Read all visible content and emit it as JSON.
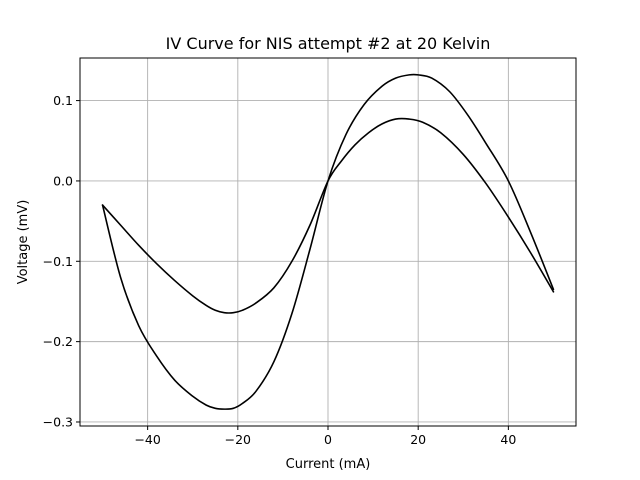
{
  "chart_data": {
    "type": "line",
    "title": "IV Curve for NIS attempt #2 at 20 Kelvin",
    "xlabel": "Current (mA)",
    "ylabel": "Voltage (mV)",
    "xlim": [
      -55,
      55
    ],
    "ylim": [
      -0.305,
      0.153
    ],
    "xticks": [
      -40,
      -20,
      0,
      20,
      40
    ],
    "xtick_labels": [
      "−40",
      "−20",
      "0",
      "20",
      "40"
    ],
    "yticks": [
      -0.3,
      -0.2,
      -0.1,
      0.0,
      0.1
    ],
    "ytick_labels": [
      "−0.3",
      "−0.2",
      "−0.1",
      "0.0",
      "0.1"
    ],
    "grid": true,
    "legend": "none",
    "line_color": "#000000",
    "series": [
      {
        "values": [
          [
            -50,
            -0.03
          ],
          [
            -46,
            -0.055
          ],
          [
            -42,
            -0.08
          ],
          [
            -38,
            -0.103
          ],
          [
            -34,
            -0.124
          ],
          [
            -30,
            -0.143
          ],
          [
            -27,
            -0.155
          ],
          [
            -25,
            -0.161
          ],
          [
            -23,
            -0.164
          ],
          [
            -21,
            -0.164
          ],
          [
            -19,
            -0.161
          ],
          [
            -16,
            -0.152
          ],
          [
            -12,
            -0.133
          ],
          [
            -8,
            -0.1
          ],
          [
            -4,
            -0.055
          ],
          [
            0,
            0.0
          ],
          [
            3,
            0.025
          ],
          [
            6,
            0.045
          ],
          [
            9,
            0.06
          ],
          [
            12,
            0.071
          ],
          [
            15,
            0.077
          ],
          [
            18,
            0.077
          ],
          [
            21,
            0.073
          ],
          [
            25,
            0.06
          ],
          [
            30,
            0.033
          ],
          [
            35,
            -0.003
          ],
          [
            40,
            -0.045
          ],
          [
            45,
            -0.09
          ],
          [
            50,
            -0.138
          ]
        ]
      },
      {
        "values": [
          [
            -50,
            -0.03
          ],
          [
            -46,
            -0.12
          ],
          [
            -42,
            -0.18
          ],
          [
            -38,
            -0.218
          ],
          [
            -34,
            -0.248
          ],
          [
            -30,
            -0.268
          ],
          [
            -27,
            -0.279
          ],
          [
            -25,
            -0.283
          ],
          [
            -23,
            -0.284
          ],
          [
            -21,
            -0.283
          ],
          [
            -19,
            -0.277
          ],
          [
            -16,
            -0.262
          ],
          [
            -12,
            -0.225
          ],
          [
            -8,
            -0.165
          ],
          [
            -4,
            -0.085
          ],
          [
            0,
            0.0
          ],
          [
            4,
            0.058
          ],
          [
            8,
            0.095
          ],
          [
            12,
            0.118
          ],
          [
            15,
            0.128
          ],
          [
            18,
            0.132
          ],
          [
            20,
            0.132
          ],
          [
            23,
            0.128
          ],
          [
            27,
            0.111
          ],
          [
            31,
            0.082
          ],
          [
            35,
            0.047
          ],
          [
            40,
            0.0
          ],
          [
            45,
            -0.065
          ],
          [
            50,
            -0.135
          ]
        ]
      }
    ]
  }
}
